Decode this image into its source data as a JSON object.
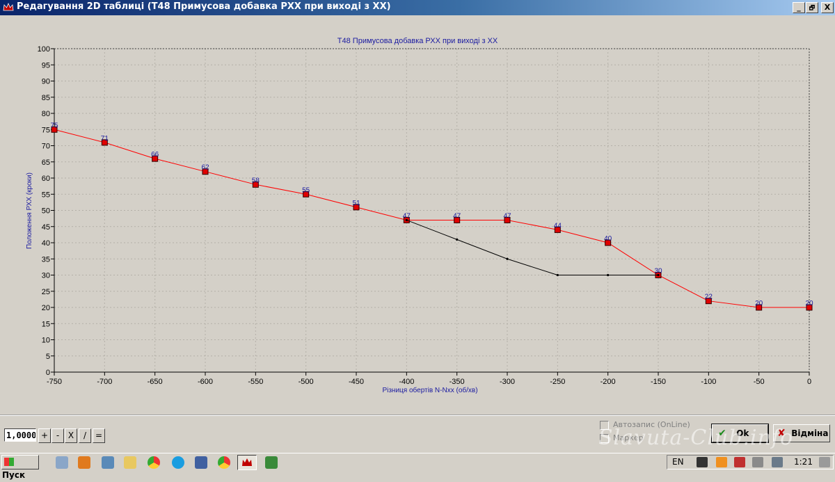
{
  "window": {
    "title": "Редагування 2D таблиці (T48 Примусова добавка РХХ при виході з ХХ)",
    "buttons": {
      "minimize": "_",
      "restore": "🗗",
      "close": "X"
    }
  },
  "chart_data": {
    "type": "line",
    "title": "T48 Примусова добавка РХХ при виході з ХХ",
    "xlabel": "Різниця обертів N-Nxx (об/хв)",
    "ylabel": "Положення РХХ (кроки)",
    "xlim": [
      -750,
      0
    ],
    "ylim": [
      0,
      100
    ],
    "x_ticks": [
      -750,
      -700,
      -650,
      -600,
      -550,
      -500,
      -450,
      -400,
      -350,
      -300,
      -250,
      -200,
      -150,
      -100,
      -50,
      0
    ],
    "y_ticks": [
      0,
      5,
      10,
      15,
      20,
      25,
      30,
      35,
      40,
      45,
      50,
      55,
      60,
      65,
      70,
      75,
      80,
      85,
      90,
      95,
      100
    ],
    "grid": true,
    "series": [
      {
        "color": "#ff0000",
        "marker": "square",
        "labels": true,
        "x": [
          -750,
          -700,
          -650,
          -600,
          -550,
          -500,
          -450,
          -400,
          -350,
          -300,
          -250,
          -200,
          -150,
          -100,
          -50,
          0
        ],
        "y": [
          75,
          71,
          66,
          62,
          58,
          55,
          51,
          47,
          47,
          47,
          44,
          40,
          30,
          22,
          20,
          20
        ]
      },
      {
        "color": "#000000",
        "marker": "dot",
        "labels": false,
        "x": [
          -400,
          -350,
          -300,
          -250,
          -200,
          -150
        ],
        "y": [
          47,
          41,
          35,
          30,
          30,
          30
        ]
      }
    ]
  },
  "toolbar": {
    "coefficient": "1,0000",
    "ops": [
      "+",
      "-",
      "X",
      "/",
      "="
    ]
  },
  "options": {
    "autosave_label": "Автозапис (OnLine)",
    "marker_label": "Маркер"
  },
  "actions": {
    "ok_label": "Ok",
    "cancel_label": "Відміна"
  },
  "watermark": "Slavuta-Club.info",
  "taskbar": {
    "start_label": "Пуск",
    "language": "EN",
    "clock": "1:21"
  }
}
